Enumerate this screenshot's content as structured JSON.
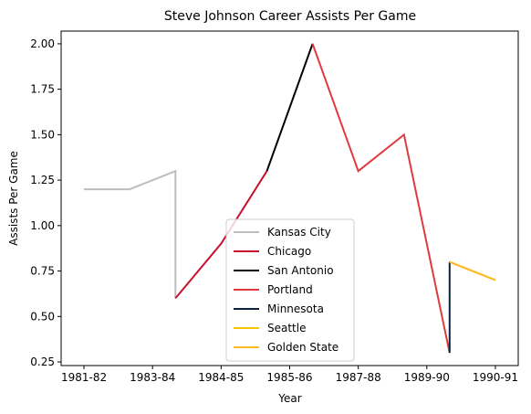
{
  "chart_data": {
    "type": "line",
    "title": "Steve Johnson  Career Assists Per Game",
    "xlabel": "Year",
    "ylabel": "Assists Per Game",
    "x_ticks": [
      "1981-82",
      "1983-84",
      "1984-85",
      "1985-86",
      "1987-88",
      "1989-90",
      "1990-91"
    ],
    "y_ticks": [
      "0.25",
      "0.50",
      "0.75",
      "1.00",
      "1.25",
      "1.50",
      "1.75",
      "2.00"
    ],
    "xlim": [
      -0.5,
      9.5
    ],
    "ylim": [
      0.23,
      2.07
    ],
    "grid": false,
    "legend_position": "lower-center",
    "series": [
      {
        "name": "Kansas City",
        "color": "#bdbdbd",
        "x": [
          0,
          1,
          2,
          2
        ],
        "y": [
          1.2,
          1.2,
          1.3,
          0.6
        ]
      },
      {
        "name": "Chicago",
        "color": "#c8102e",
        "x": [
          2,
          3,
          4
        ],
        "y": [
          0.6,
          0.9,
          1.3
        ]
      },
      {
        "name": "San Antonio",
        "color": "#000000",
        "x": [
          4,
          5
        ],
        "y": [
          1.3,
          2.0
        ]
      },
      {
        "name": "Portland",
        "color": "#e03a3e",
        "x": [
          5,
          6,
          7,
          8
        ],
        "y": [
          2.0,
          1.3,
          1.5,
          0.3
        ]
      },
      {
        "name": "Minnesota",
        "color": "#0c2340",
        "x": [
          8,
          8
        ],
        "y": [
          0.3,
          0.8
        ]
      },
      {
        "name": "Seattle",
        "color": "#ffc200",
        "x": [
          8,
          9
        ],
        "y": [
          0.8,
          0.7
        ]
      },
      {
        "name": "Golden State",
        "color": "#fdb927",
        "x": [
          8,
          9
        ],
        "y": [
          0.8,
          0.7
        ]
      }
    ]
  }
}
